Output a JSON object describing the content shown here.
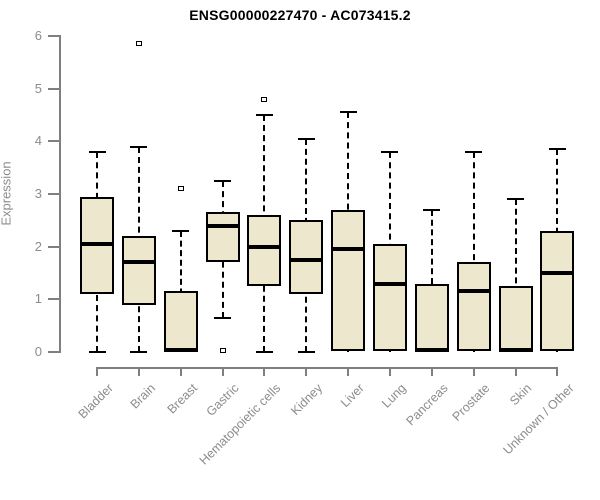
{
  "chart_data": {
    "type": "boxplot",
    "title": "ENSG00000227470 - AC073415.2",
    "ylabel": "Expression",
    "xlabel": "",
    "ylim": [
      0,
      6
    ],
    "yticks": [
      "0",
      "1",
      "2",
      "3",
      "4",
      "5",
      "6"
    ],
    "grid": false,
    "legend": "none",
    "categories": [
      "Bladder",
      "Brain",
      "Breast",
      "Gastric",
      "Hematopoietic cells",
      "Kidney",
      "Liver",
      "Lung",
      "Pancreas",
      "Prostate",
      "Skin",
      "Unknown / Other"
    ],
    "series": [
      {
        "name": "Bladder",
        "whisker_low": 0,
        "q1": 1.1,
        "median": 2.05,
        "q3": 2.95,
        "whisker_high": 3.8,
        "outliers": []
      },
      {
        "name": "Brain",
        "whisker_low": 0,
        "q1": 0.9,
        "median": 1.7,
        "q3": 2.2,
        "whisker_high": 3.9,
        "outliers": [
          5.85
        ]
      },
      {
        "name": "Breast",
        "whisker_low": 0,
        "q1": 0.0,
        "median": 0.03,
        "q3": 1.15,
        "whisker_high": 2.3,
        "outliers": [
          3.1
        ]
      },
      {
        "name": "Gastric",
        "whisker_low": 0.65,
        "q1": 1.7,
        "median": 2.4,
        "q3": 2.65,
        "whisker_high": 3.25,
        "outliers": [
          0.02
        ]
      },
      {
        "name": "Hematopoietic cells",
        "whisker_low": 0,
        "q1": 1.25,
        "median": 2.0,
        "q3": 2.6,
        "whisker_high": 4.5,
        "outliers": [
          4.8
        ]
      },
      {
        "name": "Kidney",
        "whisker_low": 0,
        "q1": 1.1,
        "median": 1.75,
        "q3": 2.5,
        "whisker_high": 4.05,
        "outliers": []
      },
      {
        "name": "Liver",
        "whisker_low": 0,
        "q1": 0.02,
        "median": 1.95,
        "q3": 2.7,
        "whisker_high": 4.55,
        "outliers": []
      },
      {
        "name": "Lung",
        "whisker_low": 0,
        "q1": 0.02,
        "median": 1.3,
        "q3": 2.05,
        "whisker_high": 3.8,
        "outliers": []
      },
      {
        "name": "Pancreas",
        "whisker_low": 0,
        "q1": 0.0,
        "median": 0.03,
        "q3": 1.3,
        "whisker_high": 2.7,
        "outliers": []
      },
      {
        "name": "Prostate",
        "whisker_low": 0,
        "q1": 0.02,
        "median": 1.15,
        "q3": 1.7,
        "whisker_high": 3.8,
        "outliers": []
      },
      {
        "name": "Skin",
        "whisker_low": 0,
        "q1": 0.0,
        "median": 0.03,
        "q3": 1.25,
        "whisker_high": 2.9,
        "outliers": []
      },
      {
        "name": "Unknown / Other",
        "whisker_low": 0,
        "q1": 0.02,
        "median": 1.5,
        "q3": 2.3,
        "whisker_high": 3.85,
        "outliers": []
      }
    ],
    "colors": {
      "box_fill": "#ece7cd",
      "box_border": "#000000",
      "median": "#000000",
      "axis": "#7f7f7f",
      "tick_label": "#8c8c8c",
      "title": "#000000",
      "background": "#ffffff"
    }
  }
}
